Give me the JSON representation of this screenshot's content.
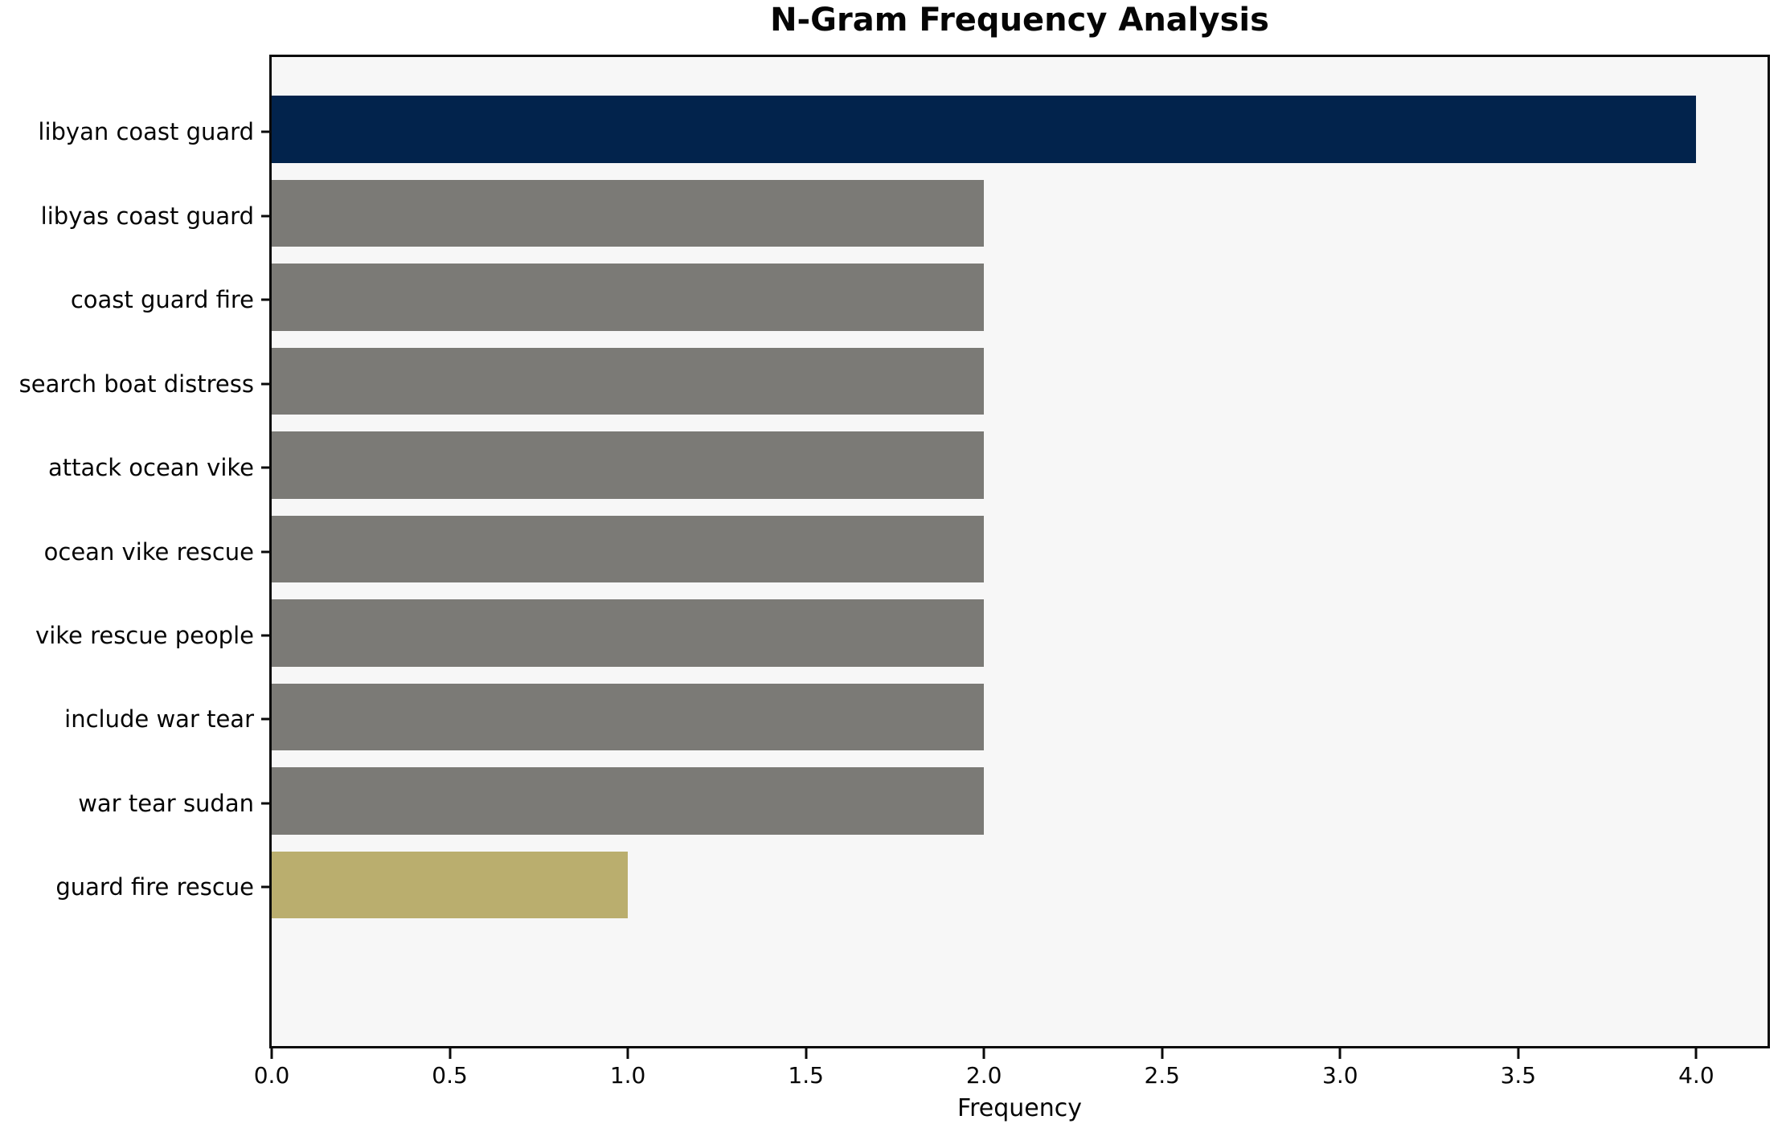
{
  "chart_data": {
    "type": "bar",
    "orientation": "horizontal",
    "title": "N-Gram Frequency Analysis",
    "xlabel": "Frequency",
    "ylabel": "",
    "categories": [
      "libyan coast guard",
      "libyas coast guard",
      "coast guard fire",
      "search boat distress",
      "attack ocean vike",
      "ocean vike rescue",
      "vike rescue people",
      "include war tear",
      "war tear sudan",
      "guard fire rescue"
    ],
    "values": [
      4,
      2,
      2,
      2,
      2,
      2,
      2,
      2,
      2,
      1
    ],
    "bar_colors": [
      "#02234C",
      "#7B7A76",
      "#7B7A76",
      "#7B7A76",
      "#7B7A76",
      "#7B7A76",
      "#7B7A76",
      "#7B7A76",
      "#7B7A76",
      "#BAAE6E"
    ],
    "xlim": [
      0,
      4.2
    ],
    "x_ticks": [
      0.0,
      0.5,
      1.0,
      1.5,
      2.0,
      2.5,
      3.0,
      3.5,
      4.0
    ],
    "x_tick_labels": [
      "0.0",
      "0.5",
      "1.0",
      "1.5",
      "2.0",
      "2.5",
      "3.0",
      "3.5",
      "4.0"
    ],
    "grid": false,
    "legend": null,
    "plot_background": "#f7f7f7",
    "figure_background": "#ffffff",
    "axis_color": "#0a0a0a"
  }
}
